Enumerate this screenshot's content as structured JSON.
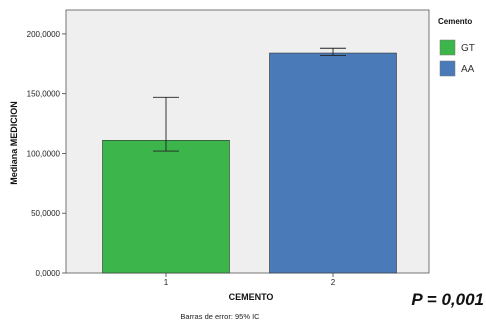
{
  "chart_data": {
    "type": "bar",
    "categories": [
      "1",
      "2"
    ],
    "values": [
      111000,
      184000
    ],
    "error_bars": [
      {
        "low": 102000,
        "high": 147000
      },
      {
        "low": 182000,
        "high": 188000
      }
    ],
    "bar_colors": [
      "#3cb54a",
      "#4a7ab8"
    ],
    "xlabel": "CEMENTO",
    "ylabel": "Mediana MEDICION",
    "ylim": [
      0,
      220000
    ],
    "yticks": [
      0,
      50000,
      100000,
      150000,
      200000
    ],
    "ytick_labels": [
      "0,0000",
      "50,0000",
      "100,0000",
      "150,0000",
      "200,0000"
    ],
    "plot_background": "#efefef",
    "grid": false,
    "legend": {
      "title": "Cemento",
      "placement": "right",
      "entries": [
        {
          "label": "GT",
          "color": "#3cb54a"
        },
        {
          "label": "AA",
          "color": "#4a7ab8"
        }
      ]
    },
    "footnote": "Barras de error: 95% IC",
    "annotation": "P = 0,001"
  }
}
